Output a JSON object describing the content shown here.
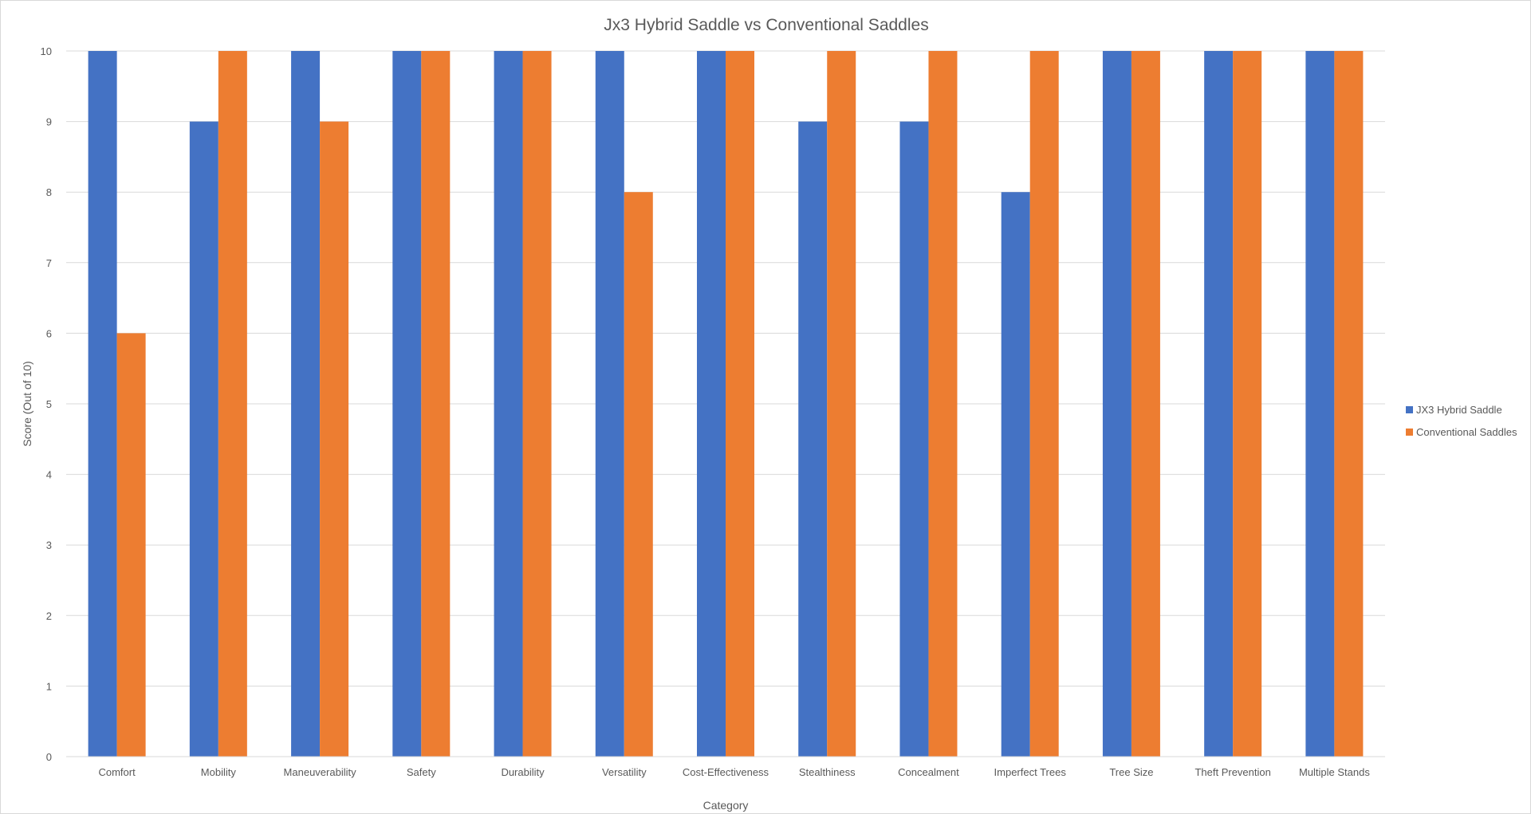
{
  "chart_data": {
    "type": "bar",
    "title": "Jx3 Hybrid Saddle vs Conventional Saddles",
    "xlabel": "Category",
    "ylabel": "Score (Out of 10)",
    "ylim": [
      0,
      10
    ],
    "yticks": [
      0,
      1,
      2,
      3,
      4,
      5,
      6,
      7,
      8,
      9,
      10
    ],
    "grid": true,
    "legend_position": "right",
    "categories": [
      "Comfort",
      "Mobility",
      "Maneuverability",
      "Safety",
      "Durability",
      "Versatility",
      "Cost-Effectiveness",
      "Stealthiness",
      "Concealment",
      "Imperfect Trees",
      "Tree Size",
      "Theft Prevention",
      "Multiple Stands"
    ],
    "series": [
      {
        "name": "JX3 Hybrid Saddle",
        "color": "#4472C4",
        "values": [
          10,
          9,
          10,
          10,
          10,
          10,
          10,
          9,
          9,
          8,
          10,
          10,
          10
        ]
      },
      {
        "name": "Conventional Saddles",
        "color": "#ED7D31",
        "values": [
          6,
          10,
          9,
          10,
          10,
          8,
          10,
          10,
          10,
          10,
          10,
          10,
          10
        ]
      }
    ]
  }
}
